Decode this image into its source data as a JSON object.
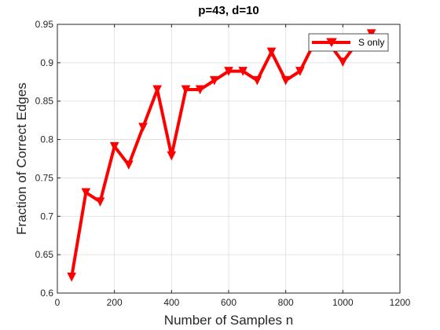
{
  "chart_data": {
    "type": "line",
    "title": "p=43, d=10",
    "xlabel": "Number of Samples n",
    "ylabel": "Fraction of Correct Edges",
    "xlim": [
      0,
      1200
    ],
    "ylim": [
      0.6,
      0.95
    ],
    "xticks": [
      0,
      200,
      400,
      600,
      800,
      1000,
      1200
    ],
    "yticks": [
      0.6,
      0.65,
      0.7,
      0.75,
      0.8,
      0.85,
      0.9,
      0.95
    ],
    "xtick_labels": [
      "0",
      "200",
      "400",
      "600",
      "800",
      "1000",
      "1200"
    ],
    "ytick_labels": [
      "0.6",
      "0.65",
      "0.7",
      "0.75",
      "0.8",
      "0.85",
      "0.9",
      "0.95"
    ],
    "grid": true,
    "legend_position": "top-right",
    "series": [
      {
        "name": "S only",
        "color": "#ff0000",
        "marker": "triangle-down",
        "x": [
          50,
          100,
          150,
          200,
          250,
          300,
          350,
          400,
          450,
          500,
          550,
          600,
          650,
          700,
          750,
          800,
          850,
          900,
          950,
          1000,
          1050,
          1100
        ],
        "y": [
          0.621,
          0.731,
          0.719,
          0.791,
          0.767,
          0.816,
          0.865,
          0.779,
          0.865,
          0.865,
          0.877,
          0.889,
          0.889,
          0.877,
          0.914,
          0.877,
          0.889,
          0.926,
          0.926,
          0.901,
          0.926,
          0.938
        ]
      }
    ]
  }
}
